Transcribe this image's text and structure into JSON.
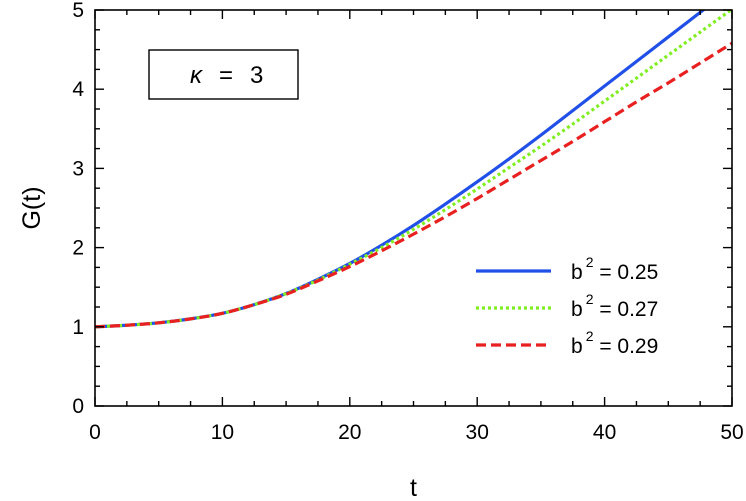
{
  "chart_data": {
    "type": "line",
    "xlabel": "t",
    "ylabel": "G(t)",
    "xlim": [
      0,
      50
    ],
    "ylim": [
      0,
      5
    ],
    "x_ticks": [
      "0",
      "10",
      "20",
      "30",
      "40",
      "50"
    ],
    "y_ticks": [
      "0",
      "1",
      "2",
      "3",
      "4",
      "5"
    ],
    "grid": false,
    "legend_position": "bottom-right",
    "annotation": {
      "symbol": "κ",
      "eq": "=",
      "value": "3"
    },
    "x": [
      0,
      2.5,
      5,
      7.5,
      10,
      12.5,
      15,
      17.5,
      20,
      22.5,
      25,
      27.5,
      30,
      32.5,
      35,
      37.5,
      40,
      42.5,
      45,
      47.5,
      50
    ],
    "series": [
      {
        "name": "b² = 0.25",
        "legend_base": "b",
        "legend_sup": "2",
        "legend_rest": " = 0.25",
        "color": "#2050e8",
        "dash": "solid",
        "values": [
          1.0,
          1.02,
          1.05,
          1.1,
          1.17,
          1.28,
          1.42,
          1.6,
          1.8,
          2.03,
          2.28,
          2.55,
          2.83,
          3.12,
          3.42,
          3.73,
          4.04,
          4.35,
          4.66,
          4.97,
          5.28
        ]
      },
      {
        "name": "b² = 0.27",
        "legend_base": "b",
        "legend_sup": "2",
        "legend_rest": " = 0.27",
        "color": "#80ee20",
        "dash": "dotted",
        "values": [
          1.0,
          1.02,
          1.05,
          1.1,
          1.17,
          1.28,
          1.42,
          1.59,
          1.79,
          2.0,
          2.23,
          2.48,
          2.74,
          3.01,
          3.28,
          3.56,
          3.85,
          4.14,
          4.43,
          4.72,
          5.01
        ]
      },
      {
        "name": "b² = 0.29",
        "legend_base": "b",
        "legend_sup": "2",
        "legend_rest": " = 0.29",
        "color": "#e82020",
        "dash": "dashed",
        "values": [
          1.0,
          1.02,
          1.05,
          1.1,
          1.17,
          1.28,
          1.41,
          1.58,
          1.76,
          1.96,
          2.17,
          2.39,
          2.62,
          2.86,
          3.1,
          3.34,
          3.59,
          3.84,
          4.08,
          4.33,
          4.58
        ]
      }
    ]
  }
}
